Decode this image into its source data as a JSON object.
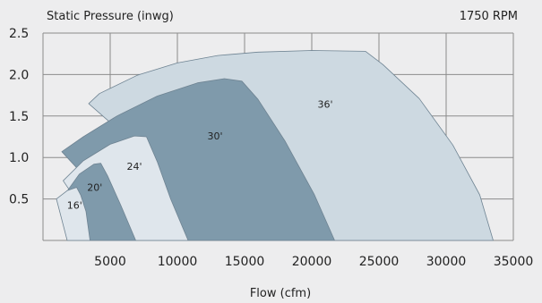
{
  "chart_data": {
    "type": "area",
    "ylabel": "Static Pressure (inwg)",
    "xlabel": "Flow (cfm)",
    "annotation": "1750 RPM",
    "xlim": [
      0,
      35000
    ],
    "ylim": [
      0,
      2.5
    ],
    "x_ticks": [
      5000,
      10000,
      15000,
      20000,
      25000,
      30000,
      35000
    ],
    "y_ticks": [
      0.5,
      1.0,
      1.5,
      2.0,
      2.5
    ],
    "x_tick_labels": [
      "5000",
      "10000",
      "15000",
      "20000",
      "25000",
      "30000",
      "35000"
    ],
    "y_tick_labels": [
      "0.5",
      "1.0",
      "1.5",
      "2.0",
      "2.5"
    ],
    "grid": true,
    "series": [
      {
        "name": "36'",
        "color": "#cdd9e1",
        "label_at": [
          21000,
          1.6
        ],
        "points": [
          [
            3400,
            1.65
          ],
          [
            4200,
            1.77
          ],
          [
            7000,
            1.99
          ],
          [
            10000,
            2.14
          ],
          [
            13000,
            2.23
          ],
          [
            16000,
            2.27
          ],
          [
            20000,
            2.29
          ],
          [
            24000,
            2.28
          ],
          [
            25300,
            2.12
          ],
          [
            28000,
            1.71
          ],
          [
            30500,
            1.15
          ],
          [
            32500,
            0.55
          ],
          [
            33500,
            0.0
          ],
          [
            15000,
            0.0
          ]
        ]
      },
      {
        "name": "30'",
        "color": "#7f9aab",
        "label_at": [
          12800,
          1.22
        ],
        "points": [
          [
            1400,
            1.07
          ],
          [
            3000,
            1.25
          ],
          [
            5500,
            1.5
          ],
          [
            8500,
            1.74
          ],
          [
            11500,
            1.9
          ],
          [
            13500,
            1.95
          ],
          [
            14800,
            1.92
          ],
          [
            16000,
            1.7
          ],
          [
            18000,
            1.2
          ],
          [
            20200,
            0.55
          ],
          [
            21700,
            0.0
          ],
          [
            7500,
            0.0
          ]
        ]
      },
      {
        "name": "24'",
        "color": "#dfe6ec",
        "label_at": [
          6800,
          0.85
        ],
        "points": [
          [
            1500,
            0.72
          ],
          [
            3000,
            0.96
          ],
          [
            5000,
            1.16
          ],
          [
            6800,
            1.26
          ],
          [
            7700,
            1.25
          ],
          [
            8500,
            0.95
          ],
          [
            9500,
            0.5
          ],
          [
            10800,
            0.0
          ],
          [
            4500,
            0.0
          ]
        ]
      },
      {
        "name": "20'",
        "color": "#7f9aab",
        "label_at": [
          3850,
          0.6
        ],
        "points": [
          [
            1600,
            0.55
          ],
          [
            2700,
            0.8
          ],
          [
            3800,
            0.92
          ],
          [
            4300,
            0.93
          ],
          [
            4800,
            0.78
          ],
          [
            5800,
            0.42
          ],
          [
            6900,
            0.0
          ],
          [
            3300,
            0.0
          ]
        ]
      },
      {
        "name": "16'",
        "color": "#dfe6ec",
        "label_at": [
          2350,
          0.38
        ],
        "points": [
          [
            1000,
            0.5
          ],
          [
            1800,
            0.6
          ],
          [
            2500,
            0.64
          ],
          [
            2800,
            0.55
          ],
          [
            3200,
            0.35
          ],
          [
            3500,
            0.0
          ],
          [
            1800,
            0.0
          ]
        ]
      }
    ]
  }
}
